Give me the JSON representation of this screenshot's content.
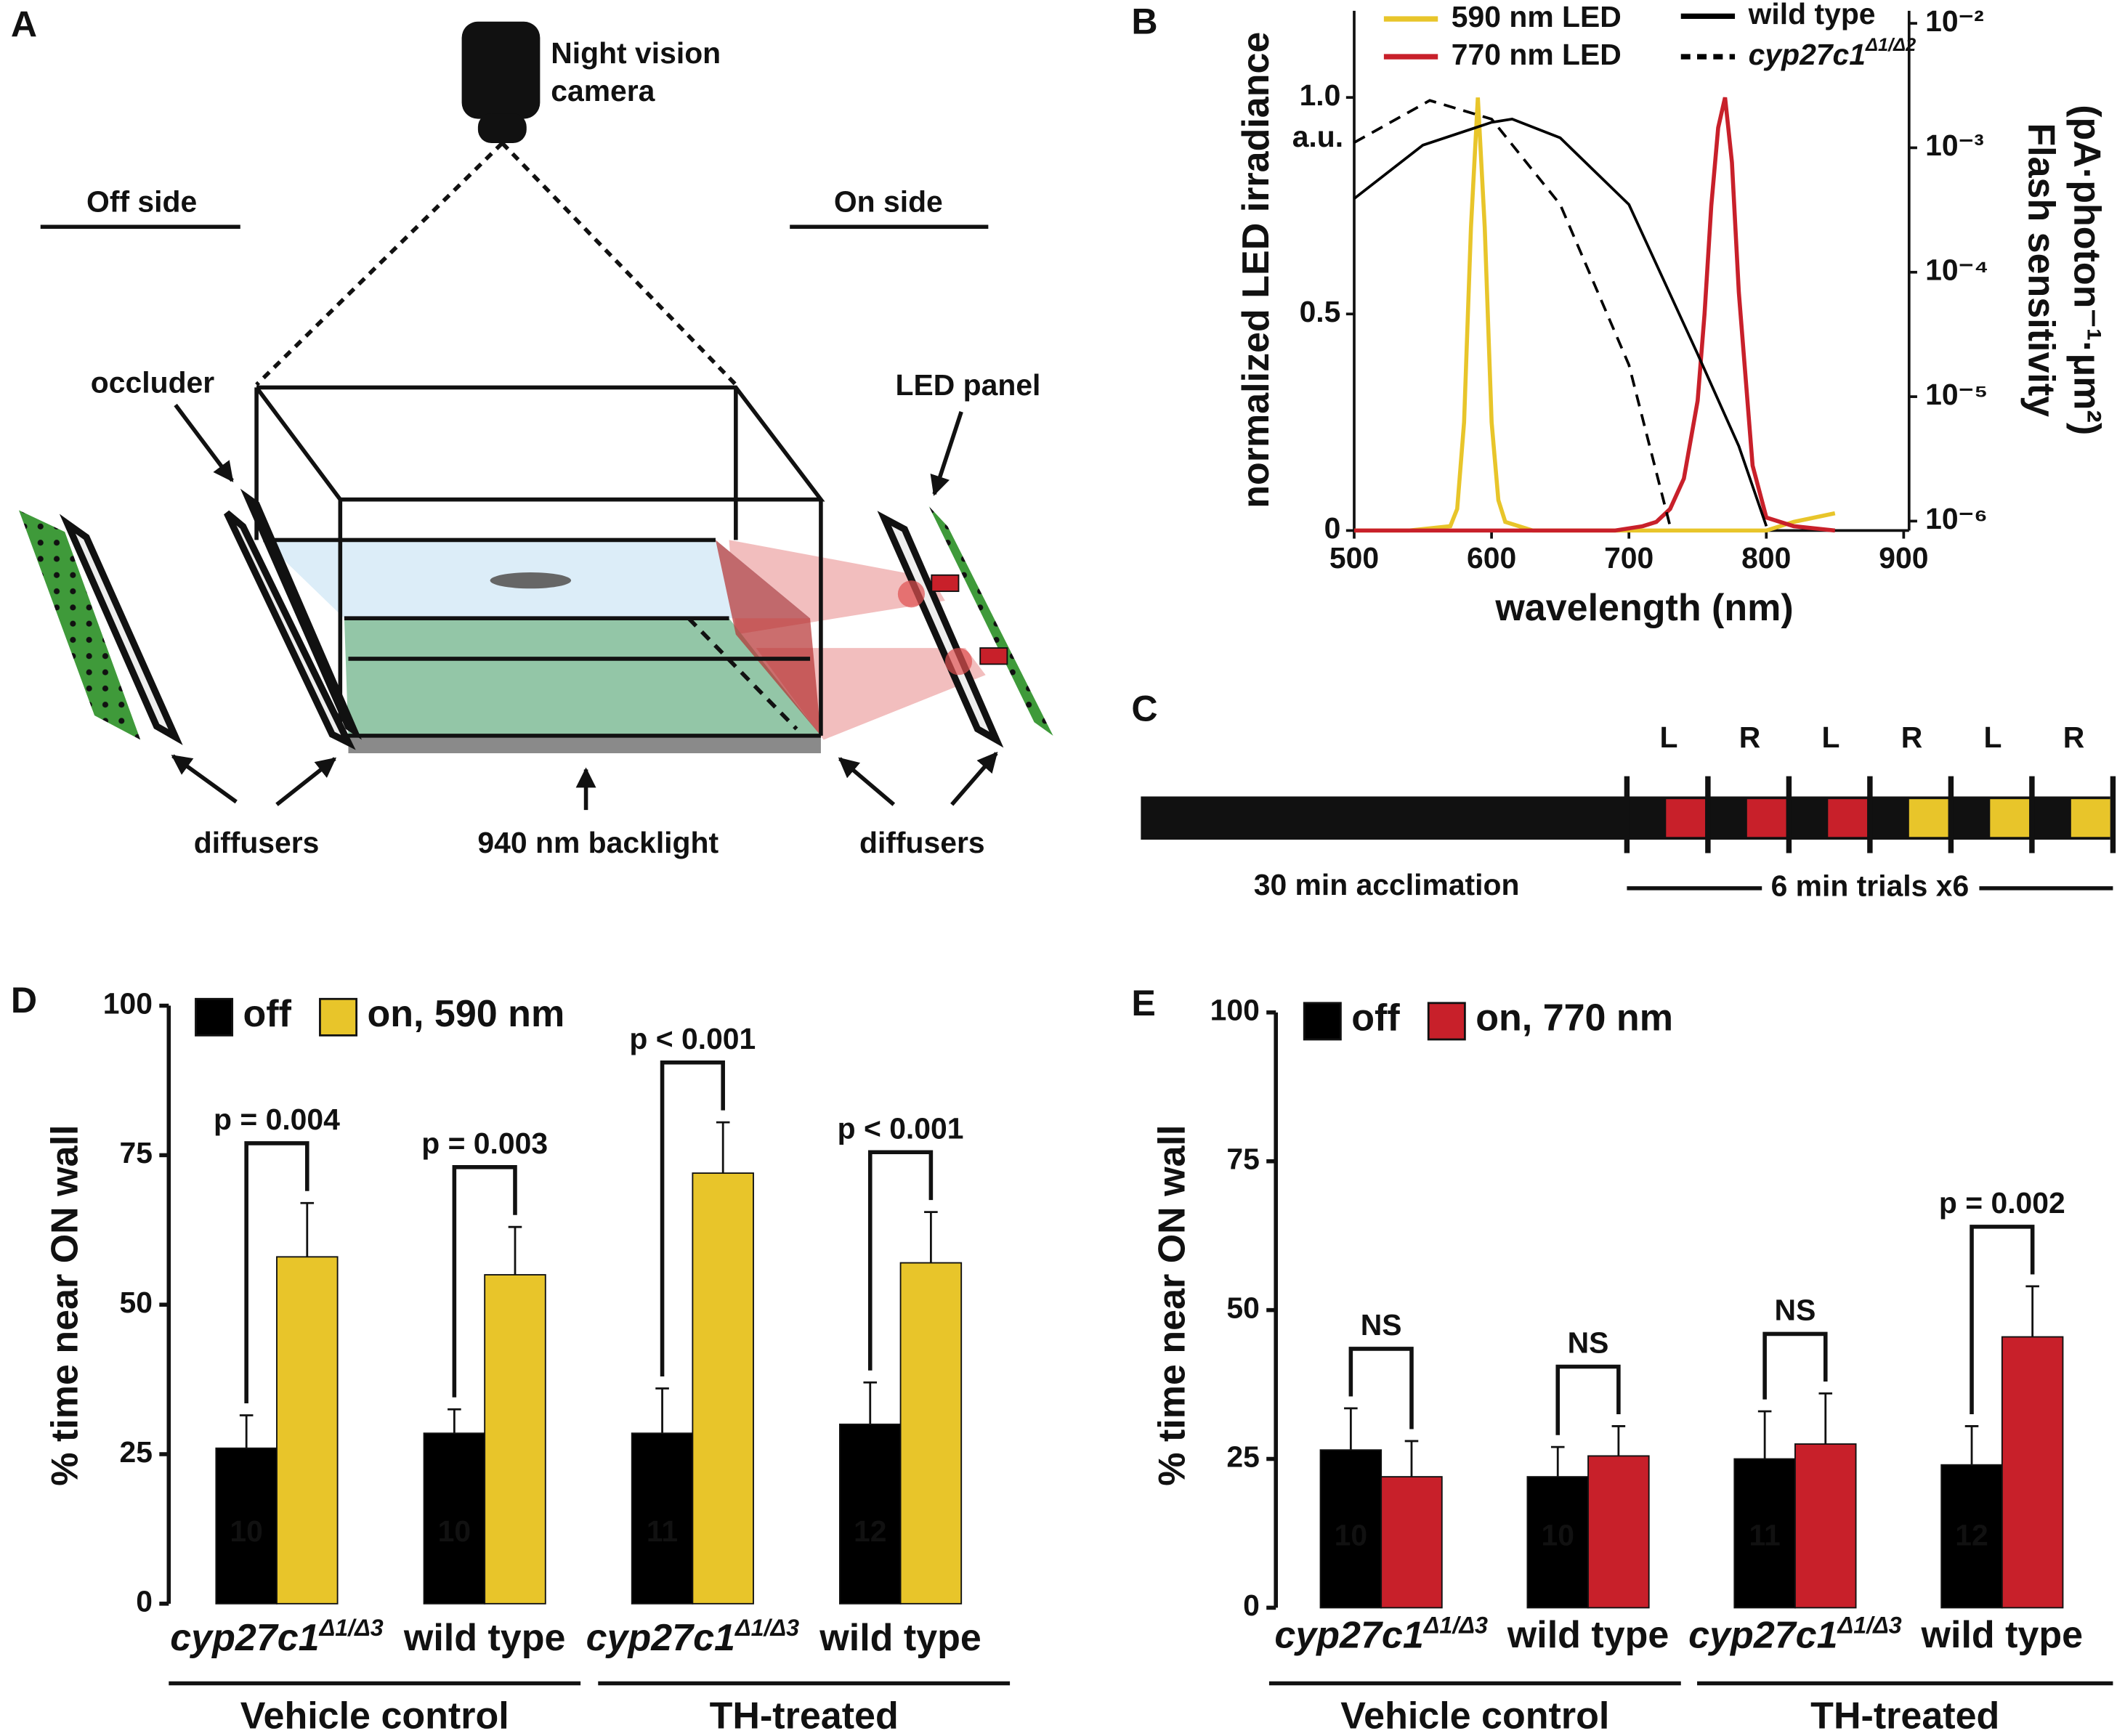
{
  "panel_labels": [
    "A",
    "B",
    "C",
    "D",
    "E"
  ],
  "setup": {
    "camera": [
      "Night vision",
      "camera"
    ],
    "off_side": "Off side",
    "on_side": "On side",
    "occluder": "occluder",
    "led_panel": "LED panel",
    "diffusers_left": "diffusers",
    "diffusers_right": "diffusers",
    "backlight": "940 nm backlight"
  },
  "timeline": {
    "trials": [
      "L",
      "R",
      "L",
      "R",
      "L",
      "R"
    ],
    "trial_colors": [
      "#c8202a",
      "#c8202a",
      "#c8202a",
      "#e8c52a",
      "#e8c52a",
      "#e8c52a"
    ],
    "acclimation": "30 min acclimation",
    "trials_label": "6 min trials x6"
  },
  "chart_data": [
    {
      "type": "line",
      "xlabel": "wavelength (nm)",
      "ylabel": "normalized LED irradiance",
      "y2label": [
        "Flash sensitivity",
        "(pA·photon⁻¹·μm²)"
      ],
      "y_annotation": "a.u.",
      "xlim": [
        500,
        900
      ],
      "xticks": [
        500,
        600,
        700,
        800,
        900
      ],
      "ylim": [
        0,
        1.2
      ],
      "yticks": [
        0,
        0.5,
        {
          "value": 1,
          "label": "1.0"
        }
      ],
      "y2scale": "log",
      "y2lim": [
        8.4e-07,
        0.0126
      ],
      "y2ticks": [
        {
          "value": 1e-06,
          "label": "10⁻⁶"
        },
        {
          "value": 1e-05,
          "label": "10⁻⁵"
        },
        {
          "value": 0.0001,
          "label": "10⁻⁴"
        },
        {
          "value": 0.001,
          "label": "10⁻³"
        },
        {
          "value": 0.01,
          "label": "10⁻²"
        }
      ],
      "series": [
        {
          "name": "590 nm LED",
          "color": "#e8c52a",
          "style": "solid",
          "x": [
            500,
            540,
            570,
            575,
            580,
            585,
            590,
            595,
            600,
            605,
            610,
            630,
            660,
            690,
            710,
            720,
            730,
            740,
            750,
            755,
            760,
            765,
            770,
            775,
            780,
            790,
            800,
            820,
            850
          ],
          "values": [
            0,
            0,
            0.01,
            0.05,
            0.25,
            0.7,
            1,
            0.7,
            0.25,
            0.07,
            0.02,
            0,
            0,
            0,
            0,
            0,
            0,
            0,
            0,
            0,
            0,
            0,
            0,
            0,
            0,
            0,
            0,
            0.02,
            0.04
          ]
        },
        {
          "name": "770 nm LED",
          "color": "#c8202a",
          "style": "solid",
          "x": [
            500,
            540,
            570,
            575,
            580,
            585,
            590,
            595,
            600,
            605,
            610,
            630,
            660,
            690,
            710,
            720,
            730,
            740,
            750,
            755,
            760,
            765,
            770,
            775,
            780,
            790,
            800,
            820,
            850
          ],
          "values": [
            0,
            0,
            0,
            0,
            0,
            0,
            0,
            0,
            0,
            0,
            0,
            0,
            0,
            0,
            0.01,
            0.02,
            0.05,
            0.12,
            0.3,
            0.5,
            0.75,
            0.93,
            1,
            0.85,
            0.55,
            0.15,
            0.03,
            0.01,
            0
          ]
        },
        {
          "name": "wild type",
          "color": "#000000",
          "style": "solid",
          "axis": "y2",
          "x": [
            500,
            550,
            600,
            615,
            650,
            700,
            750,
            780,
            800
          ],
          "values": [
            0.00039,
            0.00105,
            0.0016,
            0.0017,
            0.0012,
            0.00035,
            2.2e-05,
            4e-06,
            9.1e-07
          ]
        },
        {
          "name": "cyp27c1Δ1/Δ2",
          "color": "#000000",
          "style": "dashed",
          "axis": "y2",
          "x": [
            500,
            555,
            600,
            650,
            700,
            730
          ],
          "values": [
            0.0011,
            0.0024,
            0.0017,
            0.00035,
            1.8e-05,
            9.1e-07
          ]
        }
      ]
    },
    {
      "type": "bar",
      "ylabel": "% time near ON wall",
      "categories": [
        "cyp27c1Δ1/Δ3",
        "wild type",
        "cyp27c1Δ1/Δ3",
        "wild type"
      ],
      "group_labels": [
        "Vehicle control",
        "TH-treated"
      ],
      "ylim": [
        0,
        100
      ],
      "yticks": [
        0,
        25,
        50,
        75,
        100
      ],
      "series": [
        {
          "name": "off",
          "color": "#000000",
          "values": [
            26,
            28.5,
            28.5,
            30
          ],
          "errors": [
            5.5,
            4,
            7.5,
            7
          ]
        },
        {
          "name": "on, 590 nm",
          "color": "#e8c52a",
          "values": [
            58,
            55,
            72,
            57
          ],
          "errors": [
            9,
            8,
            8.5,
            8.5
          ]
        }
      ],
      "n": [
        10,
        10,
        11,
        12
      ],
      "comparisons": [
        "p = 0.004",
        "p = 0.003",
        "p < 0.001",
        "p < 0.001"
      ]
    },
    {
      "type": "bar",
      "ylabel": "% time near ON wall",
      "categories": [
        "cyp27c1Δ1/Δ3",
        "wild type",
        "cyp27c1Δ1/Δ3",
        "wild type"
      ],
      "group_labels": [
        "Vehicle control",
        "TH-treated"
      ],
      "ylim": [
        0,
        100
      ],
      "yticks": [
        0,
        25,
        50,
        75,
        100
      ],
      "series": [
        {
          "name": "off",
          "color": "#000000",
          "values": [
            26.5,
            22,
            25,
            24
          ],
          "errors": [
            7,
            5,
            8,
            6.5
          ]
        },
        {
          "name": "on, 770 nm",
          "color": "#c8202a",
          "values": [
            22,
            25.5,
            27.5,
            45.5
          ],
          "errors": [
            6,
            5,
            8.5,
            8.5
          ]
        }
      ],
      "n": [
        10,
        10,
        11,
        12
      ],
      "comparisons": [
        "NS",
        "NS",
        "NS",
        "p = 0.002"
      ]
    }
  ]
}
